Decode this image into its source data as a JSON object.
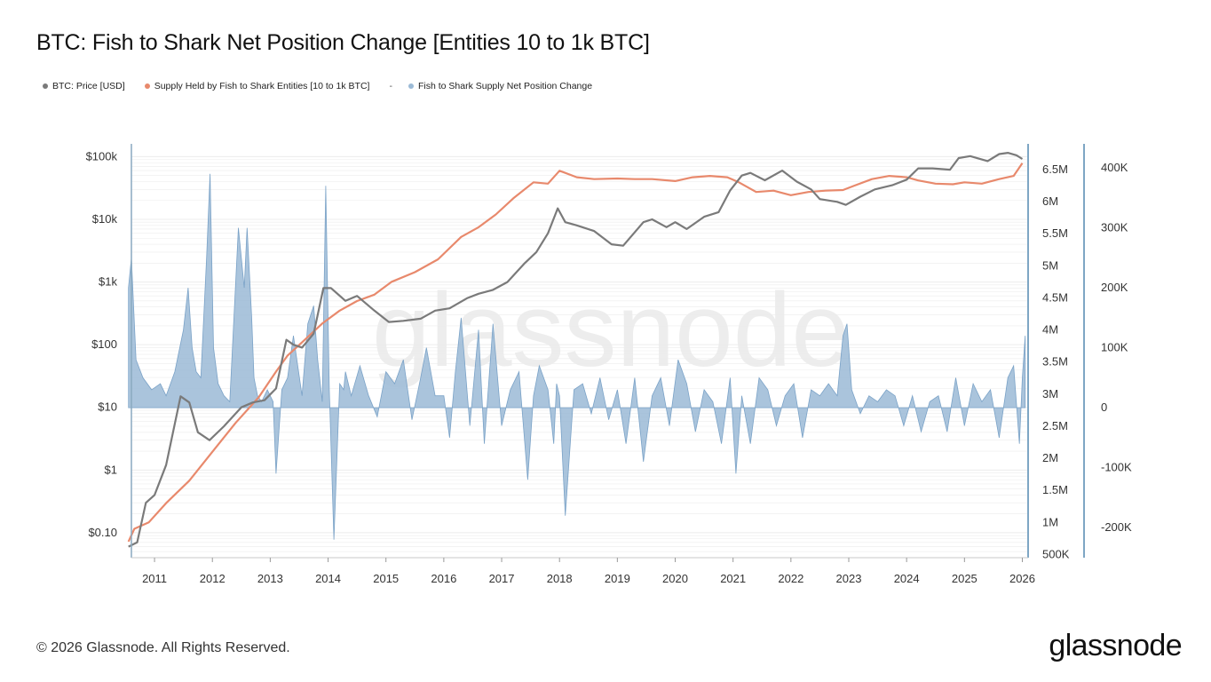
{
  "page": {
    "title": "BTC: Fish to Shark Net Position Change [Entities 10 to 1k BTC]",
    "footer": "© 2026 Glassnode. All Rights Reserved.",
    "brand": "glassnode",
    "watermark": "glassnode"
  },
  "legend": {
    "items": [
      {
        "label": "BTC: Price [USD]",
        "color": "#7a7a7a"
      },
      {
        "label": "Supply Held by Fish to Shark Entities [10 to 1k BTC]",
        "color": "#e8896c"
      },
      {
        "label": "Fish to Shark Supply Net Position Change",
        "color": "#9bbad6"
      }
    ],
    "separator": "-"
  },
  "colors": {
    "price": "#7a7a7a",
    "supply": "#e8896c",
    "netchange_fill": "#9bbad6",
    "netchange_stroke": "#7aa2c7",
    "axis_line": "#7ea6c4",
    "grid": "#ececec"
  },
  "chart_data": {
    "type": "line",
    "x": {
      "range": [
        2010.6,
        2026.1
      ],
      "ticks": [
        2011,
        2012,
        2013,
        2014,
        2015,
        2016,
        2017,
        2018,
        2019,
        2020,
        2021,
        2022,
        2023,
        2024,
        2025,
        2026
      ],
      "tick_labels": [
        "2011",
        "2012",
        "2013",
        "2014",
        "2015",
        "2016",
        "2017",
        "2018",
        "2019",
        "2020",
        "2021",
        "2022",
        "2023",
        "2024",
        "2025",
        "2026"
      ]
    },
    "axes": {
      "left": {
        "scale": "log",
        "range": [
          0.04,
          160000
        ],
        "ticks": [
          0.1,
          1,
          10,
          100,
          1000,
          10000,
          100000
        ],
        "tick_labels": [
          "$0.10",
          "$1",
          "$10",
          "$100",
          "$1k",
          "$10k",
          "$100k"
        ]
      },
      "right1": {
        "scale": "linear",
        "range": [
          450000,
          6900000
        ],
        "ticks": [
          500000,
          1000000,
          1500000,
          2000000,
          2500000,
          3000000,
          3500000,
          4000000,
          4500000,
          5000000,
          5500000,
          6000000,
          6500000
        ],
        "tick_labels": [
          "500K",
          "1M",
          "1.5M",
          "2M",
          "2.5M",
          "3M",
          "3.5M",
          "4M",
          "4.5M",
          "5M",
          "5.5M",
          "6M",
          "6.5M"
        ]
      },
      "right2": {
        "scale": "linear",
        "range": [
          -250000,
          440000
        ],
        "ticks": [
          -200000,
          -100000,
          0,
          100000,
          200000,
          300000,
          400000
        ],
        "tick_labels": [
          "-200K",
          "-100K",
          "0",
          "100K",
          "200K",
          "300K",
          "400K"
        ]
      }
    },
    "series": [
      {
        "name": "BTC: Price [USD]",
        "axis": "left",
        "x": [
          2010.55,
          2010.7,
          2010.85,
          2011.0,
          2011.2,
          2011.45,
          2011.6,
          2011.75,
          2011.95,
          2012.2,
          2012.5,
          2012.7,
          2012.9,
          2013.1,
          2013.28,
          2013.4,
          2013.55,
          2013.75,
          2013.92,
          2014.05,
          2014.3,
          2014.5,
          2014.8,
          2015.05,
          2015.3,
          2015.6,
          2015.85,
          2016.1,
          2016.4,
          2016.6,
          2016.85,
          2017.1,
          2017.4,
          2017.6,
          2017.8,
          2017.97,
          2018.1,
          2018.3,
          2018.6,
          2018.9,
          2019.1,
          2019.45,
          2019.6,
          2019.85,
          2020.0,
          2020.2,
          2020.5,
          2020.75,
          2020.95,
          2021.15,
          2021.3,
          2021.55,
          2021.85,
          2022.1,
          2022.35,
          2022.5,
          2022.8,
          2022.95,
          2023.2,
          2023.45,
          2023.75,
          2024.0,
          2024.2,
          2024.45,
          2024.75,
          2024.9,
          2025.1,
          2025.4,
          2025.6,
          2025.75,
          2025.9,
          2026.0
        ],
        "y": [
          0.06,
          0.07,
          0.3,
          0.4,
          1.2,
          15,
          12,
          4,
          3,
          5,
          10,
          12,
          13,
          20,
          120,
          100,
          90,
          150,
          800,
          800,
          500,
          600,
          350,
          230,
          240,
          260,
          350,
          380,
          550,
          650,
          750,
          1000,
          2000,
          3000,
          6000,
          15000,
          9000,
          8000,
          6500,
          4000,
          3800,
          9000,
          10000,
          7500,
          9000,
          7000,
          11000,
          13000,
          29000,
          50000,
          55000,
          42000,
          60000,
          40000,
          30000,
          21000,
          19000,
          17000,
          23000,
          30000,
          35000,
          43000,
          65000,
          65000,
          62000,
          95000,
          102000,
          85000,
          110000,
          115000,
          105000,
          92000
        ]
      },
      {
        "name": "Supply Held by Fish to Shark Entities [10 to 1k BTC]",
        "axis": "right1",
        "x": [
          2010.55,
          2010.65,
          2010.9,
          2011.2,
          2011.6,
          2012.0,
          2012.4,
          2012.8,
          2013.1,
          2013.3,
          2013.6,
          2013.9,
          2014.2,
          2014.5,
          2014.8,
          2015.1,
          2015.5,
          2015.9,
          2016.3,
          2016.6,
          2016.9,
          2017.2,
          2017.55,
          2017.8,
          2018.0,
          2018.3,
          2018.6,
          2019.0,
          2019.3,
          2019.6,
          2020.0,
          2020.3,
          2020.6,
          2020.9,
          2021.1,
          2021.4,
          2021.7,
          2022.0,
          2022.3,
          2022.6,
          2022.9,
          2023.1,
          2023.4,
          2023.7,
          2024.0,
          2024.2,
          2024.5,
          2024.8,
          2025.0,
          2025.3,
          2025.6,
          2025.85,
          2026.0
        ],
        "y": [
          700000,
          900000,
          1000000,
          1300000,
          1650000,
          2100000,
          2550000,
          2950000,
          3350000,
          3600000,
          3850000,
          4100000,
          4300000,
          4450000,
          4550000,
          4750000,
          4900000,
          5100000,
          5450000,
          5600000,
          5800000,
          6050000,
          6300000,
          6280000,
          6480000,
          6380000,
          6350000,
          6360000,
          6350000,
          6350000,
          6320000,
          6380000,
          6400000,
          6380000,
          6300000,
          6150000,
          6170000,
          6100000,
          6150000,
          6170000,
          6180000,
          6250000,
          6350000,
          6400000,
          6380000,
          6330000,
          6280000,
          6270000,
          6300000,
          6280000,
          6350000,
          6400000,
          6600000
        ]
      },
      {
        "name": "Fish to Shark Supply Net Position Change",
        "axis": "right2",
        "style": "area",
        "x": [
          2010.55,
          2010.6,
          2010.68,
          2010.8,
          2010.95,
          2011.1,
          2011.2,
          2011.35,
          2011.5,
          2011.58,
          2011.65,
          2011.72,
          2011.8,
          2011.9,
          2011.96,
          2012.02,
          2012.1,
          2012.2,
          2012.3,
          2012.45,
          2012.55,
          2012.6,
          2012.68,
          2012.72,
          2012.78,
          2012.85,
          2012.95,
          2013.05,
          2013.1,
          2013.2,
          2013.3,
          2013.4,
          2013.55,
          2013.65,
          2013.75,
          2013.82,
          2013.9,
          2013.96,
          2014.02,
          2014.1,
          2014.2,
          2014.27,
          2014.3,
          2014.4,
          2014.55,
          2014.7,
          2014.85,
          2015.0,
          2015.15,
          2015.3,
          2015.45,
          2015.6,
          2015.7,
          2015.85,
          2016.0,
          2016.1,
          2016.2,
          2016.3,
          2016.45,
          2016.6,
          2016.7,
          2016.85,
          2017.0,
          2017.15,
          2017.3,
          2017.45,
          2017.55,
          2017.65,
          2017.8,
          2017.9,
          2017.95,
          2018.0,
          2018.1,
          2018.25,
          2018.4,
          2018.55,
          2018.7,
          2018.85,
          2019.0,
          2019.15,
          2019.3,
          2019.45,
          2019.6,
          2019.75,
          2019.9,
          2020.05,
          2020.2,
          2020.35,
          2020.5,
          2020.65,
          2020.8,
          2020.95,
          2021.05,
          2021.15,
          2021.3,
          2021.45,
          2021.6,
          2021.75,
          2021.9,
          2022.05,
          2022.2,
          2022.35,
          2022.5,
          2022.65,
          2022.8,
          2022.9,
          2022.97,
          2023.05,
          2023.2,
          2023.35,
          2023.5,
          2023.65,
          2023.8,
          2023.95,
          2024.1,
          2024.25,
          2024.4,
          2024.55,
          2024.7,
          2024.85,
          2025.0,
          2025.15,
          2025.3,
          2025.45,
          2025.6,
          2025.75,
          2025.85,
          2025.95,
          2026.0,
          2026.05
        ],
        "y": [
          200000,
          250000,
          80000,
          50000,
          30000,
          40000,
          20000,
          60000,
          130000,
          200000,
          100000,
          60000,
          50000,
          250000,
          390000,
          100000,
          40000,
          20000,
          10000,
          300000,
          200000,
          300000,
          150000,
          50000,
          20000,
          10000,
          30000,
          10000,
          -110000,
          30000,
          50000,
          120000,
          20000,
          140000,
          170000,
          80000,
          10000,
          370000,
          30000,
          -220000,
          40000,
          30000,
          60000,
          20000,
          70000,
          20000,
          -15000,
          60000,
          40000,
          80000,
          -20000,
          50000,
          100000,
          20000,
          20000,
          -50000,
          60000,
          150000,
          -30000,
          130000,
          -60000,
          140000,
          -30000,
          30000,
          60000,
          -120000,
          20000,
          70000,
          30000,
          -60000,
          40000,
          20000,
          -180000,
          30000,
          40000,
          -10000,
          50000,
          -20000,
          30000,
          -60000,
          50000,
          -90000,
          20000,
          50000,
          -30000,
          80000,
          40000,
          -40000,
          30000,
          10000,
          -60000,
          50000,
          -110000,
          20000,
          -60000,
          50000,
          30000,
          -30000,
          20000,
          40000,
          -50000,
          30000,
          20000,
          40000,
          20000,
          120000,
          140000,
          30000,
          -10000,
          20000,
          10000,
          30000,
          20000,
          -30000,
          20000,
          -40000,
          10000,
          20000,
          -40000,
          50000,
          -30000,
          40000,
          10000,
          30000,
          -50000,
          50000,
          70000,
          -60000,
          50000,
          120000
        ]
      }
    ]
  }
}
